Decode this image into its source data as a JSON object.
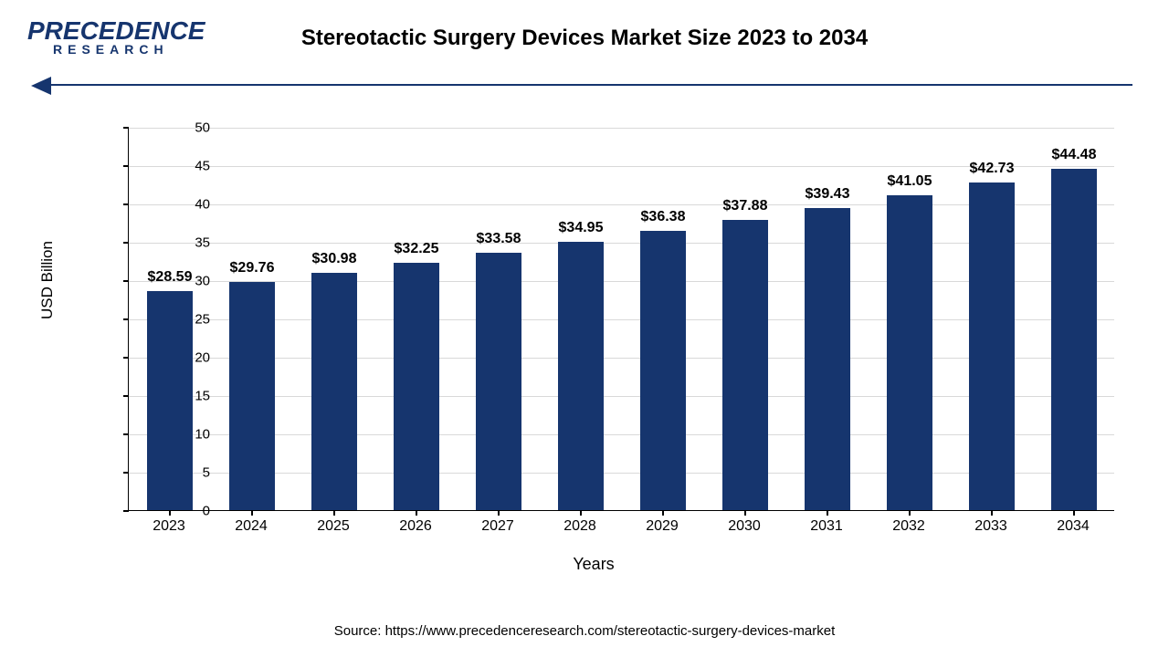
{
  "logo": {
    "top": "PRECEDENCE",
    "bottom": "RESEARCH"
  },
  "title": "Stereotactic Surgery Devices Market Size 2023 to 2034",
  "source": "Source: https://www.precedenceresearch.com/stereotactic-surgery-devices-market",
  "chart": {
    "type": "bar",
    "ylabel": "USD Billion",
    "xlabel": "Years",
    "ylim": [
      0,
      50
    ],
    "ytick_step": 5,
    "yticks": [
      0,
      5,
      10,
      15,
      20,
      25,
      30,
      35,
      40,
      45,
      50
    ],
    "categories": [
      "2023",
      "2024",
      "2025",
      "2026",
      "2027",
      "2028",
      "2029",
      "2030",
      "2031",
      "2032",
      "2033",
      "2034"
    ],
    "values": [
      28.59,
      29.76,
      30.98,
      32.25,
      33.58,
      34.95,
      36.38,
      37.88,
      39.43,
      41.05,
      42.73,
      44.48
    ],
    "value_labels": [
      "$28.59",
      "$29.76",
      "$30.98",
      "$32.25",
      "$33.58",
      "$34.95",
      "$36.38",
      "$37.88",
      "$39.43",
      "$41.05",
      "$42.73",
      "$44.48"
    ],
    "bar_color": "#16356e",
    "grid_color": "#d9d9d9",
    "background_color": "#ffffff",
    "axis_color": "#000000",
    "bar_width_ratio": 0.55,
    "label_fontsize": 16,
    "tick_fontsize": 15,
    "title_fontsize": 24,
    "label_font_weight": "bold"
  }
}
